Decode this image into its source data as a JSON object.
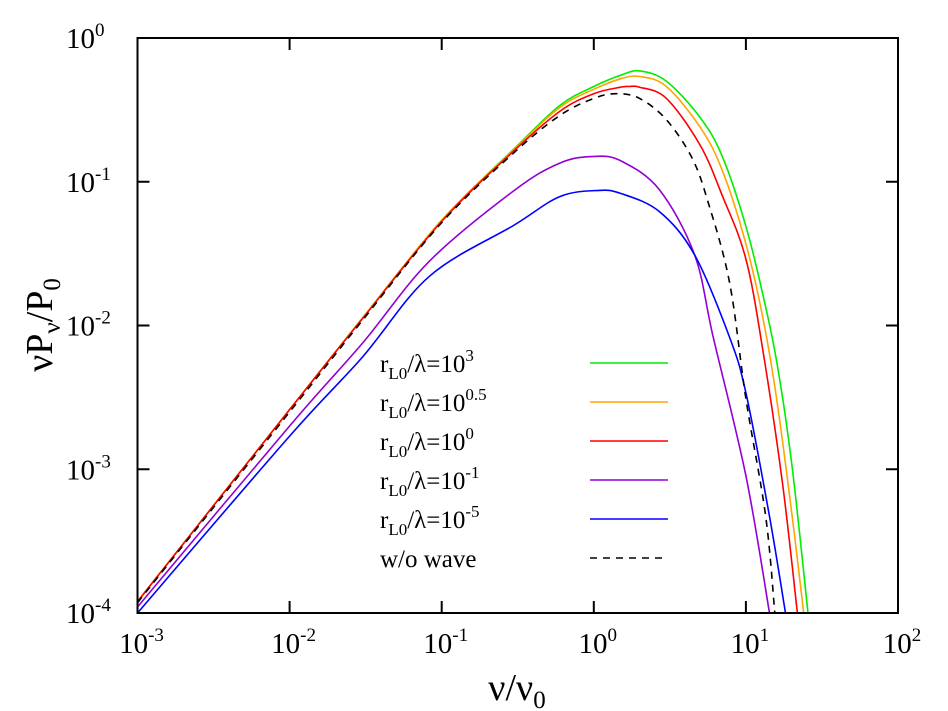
{
  "chart_data": {
    "type": "line",
    "xscale": "log",
    "yscale": "log",
    "xlim": [
      0.001,
      100
    ],
    "ylim": [
      0.0001,
      1
    ],
    "grid": false,
    "legend_placement": "bottom-center",
    "xlabel": {
      "main": "ν/ν",
      "sub": "0"
    },
    "ylabel": {
      "main": "νP",
      "sub1": "ν",
      "mid": "/P",
      "sub2": "0"
    },
    "xticks": [
      {
        "value": 0.001,
        "base": "10",
        "exp": "-3"
      },
      {
        "value": 0.01,
        "base": "10",
        "exp": "-2"
      },
      {
        "value": 0.1,
        "base": "10",
        "exp": "-1"
      },
      {
        "value": 1,
        "base": "10",
        "exp": "0"
      },
      {
        "value": 10,
        "base": "10",
        "exp": "1"
      },
      {
        "value": 100,
        "base": "10",
        "exp": "2"
      }
    ],
    "yticks": [
      {
        "value": 0.0001,
        "base": "10",
        "exp": "-4"
      },
      {
        "value": 0.001,
        "base": "10",
        "exp": "-3"
      },
      {
        "value": 0.01,
        "base": "10",
        "exp": "-2"
      },
      {
        "value": 0.1,
        "base": "10",
        "exp": "-1"
      },
      {
        "value": 1,
        "base": "10",
        "exp": "0"
      }
    ],
    "series": [
      {
        "name": "r_L0/λ=10^3",
        "label": {
          "r": "r",
          "sub": "L0",
          "mid": "/λ=10",
          "exp": "3"
        },
        "color": "#00ee00",
        "dash": false,
        "x": [
          0.001,
          0.01,
          0.03,
          0.1,
          0.3,
          0.6,
          1,
          1.5,
          2,
          3,
          5,
          7,
          10,
          13,
          16,
          20,
          25.6
        ],
        "y": [
          0.00012,
          0.0026,
          0.0112,
          0.054,
          0.17,
          0.34,
          0.46,
          0.55,
          0.59,
          0.5,
          0.28,
          0.15,
          0.049,
          0.016,
          0.0055,
          0.0011,
          0.0001
        ]
      },
      {
        "name": "r_L0/λ=10^0.5",
        "label": {
          "r": "r",
          "sub": "L0",
          "mid": "/λ=10",
          "exp": "0.5"
        },
        "color": "#ffa500",
        "dash": false,
        "x": [
          0.001,
          0.01,
          0.03,
          0.1,
          0.3,
          0.6,
          1,
          1.5,
          2,
          3,
          5,
          7,
          10,
          13,
          16,
          20,
          24
        ],
        "y": [
          0.00012,
          0.0026,
          0.0112,
          0.054,
          0.168,
          0.33,
          0.44,
          0.52,
          0.54,
          0.46,
          0.24,
          0.12,
          0.037,
          0.011,
          0.003,
          0.0005,
          0.0001
        ]
      },
      {
        "name": "r_L0/λ=10^0",
        "label": {
          "r": "r",
          "sub": "L0",
          "mid": "/λ=10",
          "exp": "0"
        },
        "color": "#ff0000",
        "dash": false,
        "x": [
          0.001,
          0.01,
          0.03,
          0.1,
          0.3,
          0.6,
          1,
          1.5,
          1.7,
          2,
          3,
          5,
          7,
          10,
          13,
          17.4,
          21.8
        ],
        "y": [
          0.00012,
          0.0026,
          0.0111,
          0.053,
          0.165,
          0.31,
          0.41,
          0.455,
          0.46,
          0.455,
          0.38,
          0.18,
          0.08,
          0.029,
          0.0065,
          0.0008,
          0.0001
        ]
      },
      {
        "name": "r_L0/λ=10^-1",
        "label": {
          "r": "r",
          "sub": "L0",
          "mid": "/λ=10",
          "exp": "-1"
        },
        "color": "#9400d3",
        "dash": false,
        "x": [
          0.001,
          0.01,
          0.03,
          0.083,
          0.3,
          0.6,
          1,
          1.5,
          2.7,
          4.6,
          6.1,
          10,
          14.3
        ],
        "y": [
          0.00011,
          0.002,
          0.0075,
          0.028,
          0.087,
          0.135,
          0.15,
          0.14,
          0.088,
          0.031,
          0.0083,
          0.0009,
          0.0001
        ]
      },
      {
        "name": "r_L0/λ=10^-5",
        "label": {
          "r": "r",
          "sub": "L0",
          "mid": "/λ=10",
          "exp": "-5"
        },
        "color": "#0000ff",
        "dash": false,
        "x": [
          0.001,
          0.01,
          0.03,
          0.083,
          0.3,
          0.6,
          1.08,
          1.5,
          2.7,
          4.6,
          7.8,
          10,
          14.3,
          18.2
        ],
        "y": [
          0.0001,
          0.0017,
          0.006,
          0.022,
          0.05,
          0.079,
          0.087,
          0.083,
          0.062,
          0.031,
          0.0083,
          0.0034,
          0.00047,
          0.0001
        ]
      },
      {
        "name": "w/o wave",
        "label": {
          "r": "w/o wave",
          "sub": "",
          "mid": "",
          "exp": ""
        },
        "color": "#000000",
        "dash": true,
        "x": [
          0.001,
          0.01,
          0.03,
          0.1,
          0.3,
          0.6,
          1,
          1.4,
          2,
          3,
          4.4,
          5.6,
          7.8,
          10,
          13.5,
          15.5
        ],
        "y": [
          0.000118,
          0.0025,
          0.0108,
          0.052,
          0.16,
          0.29,
          0.38,
          0.41,
          0.38,
          0.27,
          0.148,
          0.074,
          0.02,
          0.0031,
          0.00047,
          0.0001
        ]
      }
    ]
  }
}
